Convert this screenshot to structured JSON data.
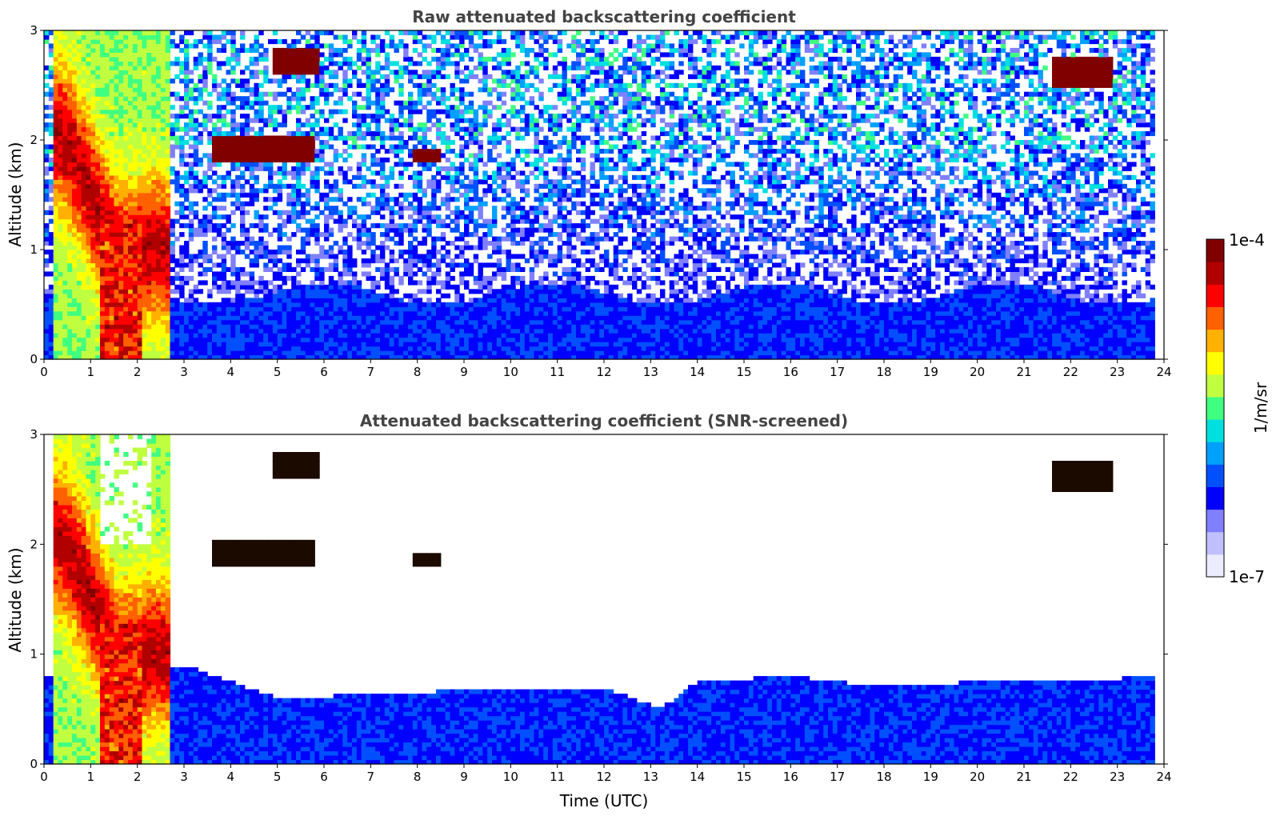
{
  "chart_data": [
    {
      "type": "heatmap",
      "title": "Raw attenuated backscattering coefficient",
      "xlabel": "",
      "ylabel": "Altitude (km)",
      "xlim": [
        0,
        24
      ],
      "ylim": [
        0,
        3
      ],
      "x_ticks": [
        "0",
        "1",
        "2",
        "3",
        "4",
        "5",
        "6",
        "7",
        "8",
        "9",
        "10",
        "11",
        "12",
        "13",
        "14",
        "15",
        "16",
        "17",
        "18",
        "19",
        "20",
        "21",
        "22",
        "23",
        "24"
      ],
      "y_ticks": [
        "0",
        "1",
        "2",
        "3"
      ],
      "data_end_time": 23.8,
      "features": [
        {
          "t0": 0.0,
          "t1": 3.0,
          "z0": 0.0,
          "z1": 3.0,
          "level": "very high"
        },
        {
          "t0": 3.6,
          "t1": 5.8,
          "z0": 1.8,
          "z1": 2.0,
          "level": "very high"
        },
        {
          "t0": 4.9,
          "t1": 5.9,
          "z0": 2.6,
          "z1": 2.8,
          "level": "very high"
        },
        {
          "t0": 7.9,
          "t1": 8.5,
          "z0": 1.8,
          "z1": 1.86,
          "level": "very high"
        },
        {
          "t0": 21.6,
          "t1": 22.9,
          "z0": 2.5,
          "z1": 2.7,
          "level": "very high"
        }
      ],
      "boundary_layer_top_km": 0.6
    },
    {
      "type": "heatmap",
      "title": "Attenuated backscattering coefficient (SNR-screened)",
      "xlabel": "Time (UTC)",
      "ylabel": "Altitude (km)",
      "xlim": [
        0,
        24
      ],
      "ylim": [
        0,
        3
      ],
      "x_ticks": [
        "0",
        "1",
        "2",
        "3",
        "4",
        "5",
        "6",
        "7",
        "8",
        "9",
        "10",
        "11",
        "12",
        "13",
        "14",
        "15",
        "16",
        "17",
        "18",
        "19",
        "20",
        "21",
        "22",
        "23",
        "24"
      ],
      "y_ticks": [
        "0",
        "1",
        "2",
        "3"
      ],
      "data_end_time": 23.8,
      "screened_boundary_layer_top_km": [
        [
          0,
          0.8
        ],
        [
          3,
          0.9
        ],
        [
          5,
          0.6
        ],
        [
          8,
          0.65
        ],
        [
          10,
          0.7
        ],
        [
          12,
          0.7
        ],
        [
          13.2,
          0.5
        ],
        [
          14,
          0.75
        ],
        [
          16,
          0.8
        ],
        [
          18,
          0.7
        ],
        [
          20,
          0.75
        ],
        [
          22,
          0.75
        ],
        [
          23.8,
          0.8
        ]
      ]
    }
  ],
  "colorbar": {
    "label": "1/m/sr",
    "max_label": "1e-4",
    "min_label": "1e-7",
    "colors": [
      "#ececff",
      "#c0c0ff",
      "#8080ff",
      "#0000ff",
      "#0050ff",
      "#00a0ff",
      "#00e0e0",
      "#40ff80",
      "#c0ff40",
      "#ffff00",
      "#ffb000",
      "#ff6000",
      "#ff0000",
      "#b00000",
      "#800000"
    ]
  }
}
